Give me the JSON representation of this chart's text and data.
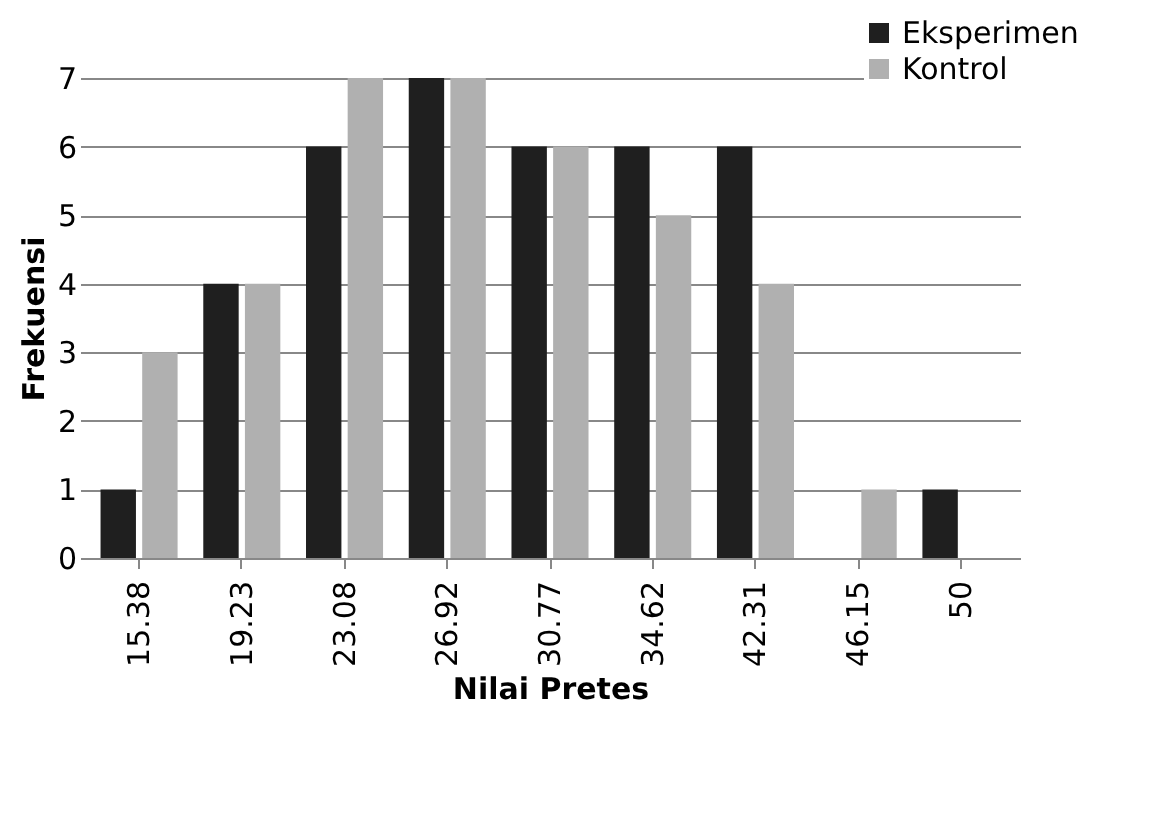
{
  "chart_data": {
    "type": "bar",
    "xlabel": "Nilai Pretes",
    "ylabel": "Frekuensi",
    "categories": [
      "15.38",
      "19.23",
      "23.08",
      "26.92",
      "30.77",
      "34.62",
      "42.31",
      "46.15",
      "50"
    ],
    "series": [
      {
        "name": "Eksperimen",
        "color": "#1f1f1f",
        "values": [
          1,
          4,
          6,
          7,
          6,
          6,
          6,
          0,
          1
        ]
      },
      {
        "name": "Kontrol",
        "color": "#b0b0b0",
        "values": [
          3,
          4,
          7,
          7,
          6,
          5,
          4,
          1,
          0
        ]
      }
    ],
    "ylim": [
      0,
      7
    ],
    "yticks": [
      0,
      1,
      2,
      3,
      4,
      5,
      6,
      7
    ],
    "grid": "y",
    "legend": "top right"
  }
}
